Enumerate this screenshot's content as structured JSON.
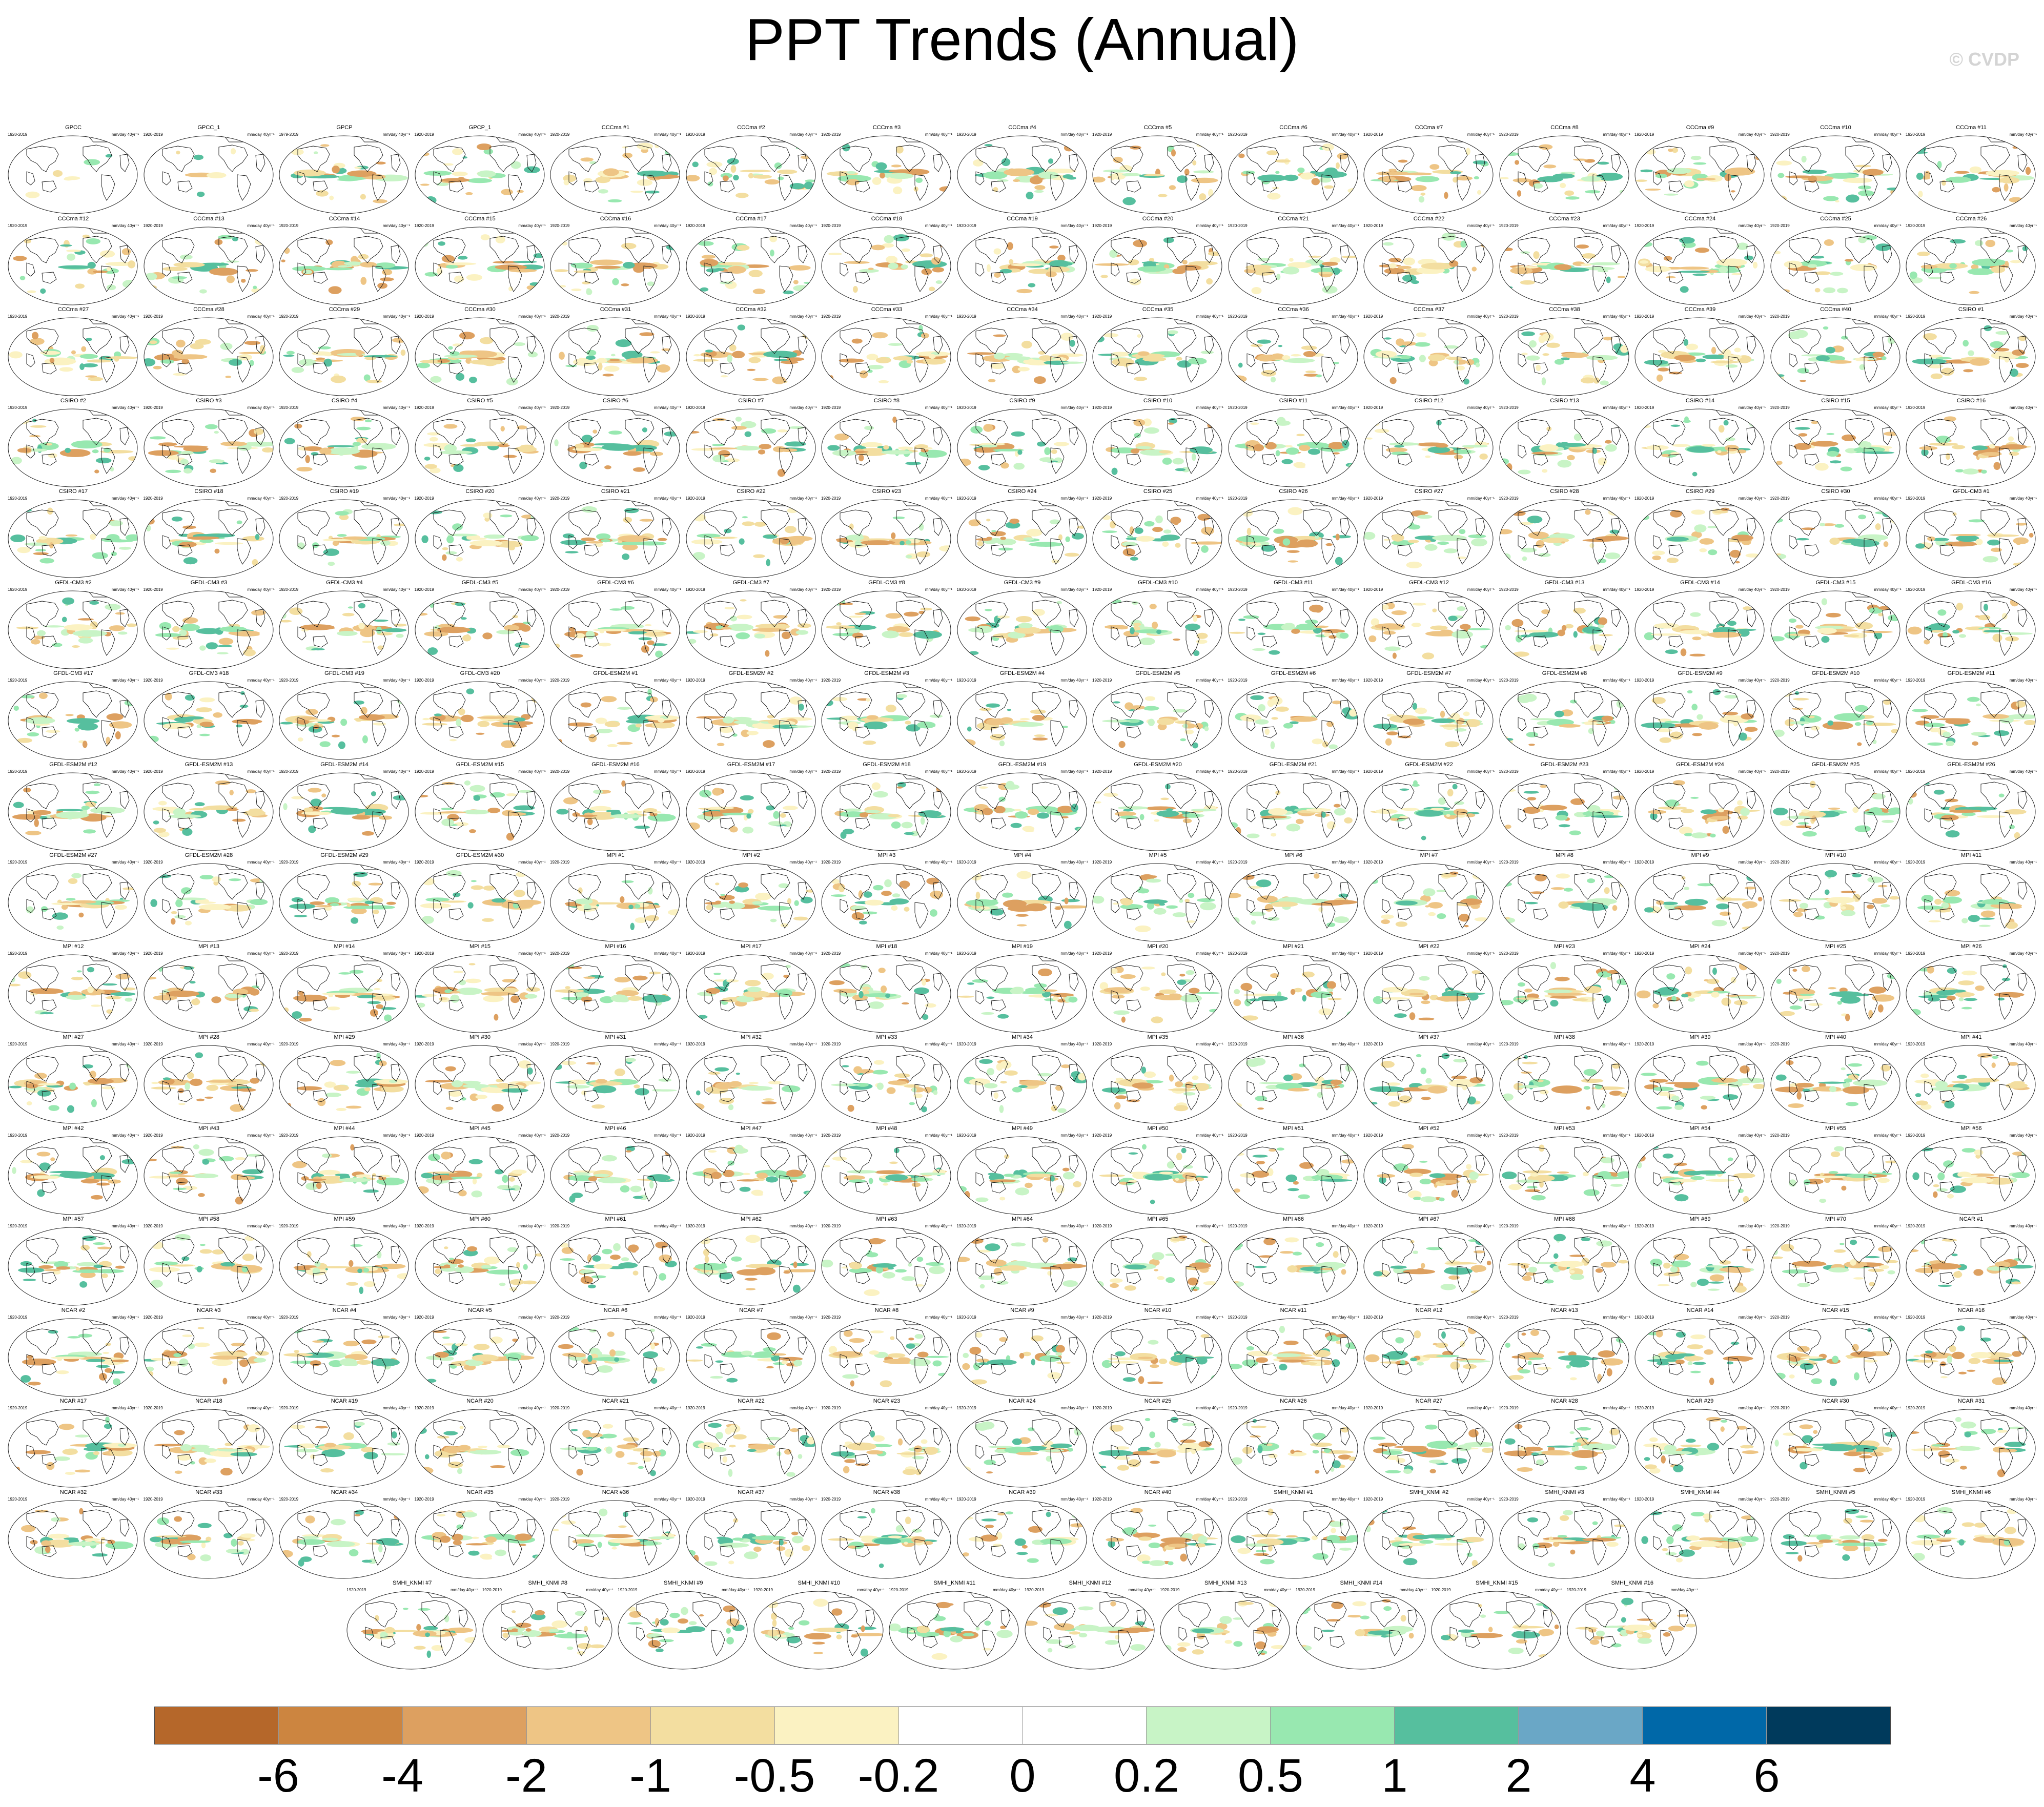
{
  "title": "PPT Trends (Annual)",
  "copyright": "© CVDP",
  "panel_units": "mm/day 40yr⁻¹",
  "observations": [
    {
      "name": "GPCC",
      "years": "1920-2019"
    },
    {
      "name": "GPCC_1",
      "years": "1920-2019"
    },
    {
      "name": "GPCP",
      "years": "1979-2019"
    },
    {
      "name": "GPCP_1",
      "years": "1920-2019"
    }
  ],
  "ensembles": [
    {
      "model": "CCCma",
      "members": 40,
      "years": "1920-2019"
    },
    {
      "model": "CSIRO",
      "members": 30,
      "years": "1920-2019"
    },
    {
      "model": "GFDL-CM3",
      "members": 20,
      "years": "1920-2019"
    },
    {
      "model": "GFDL-ESM2M",
      "members": 30,
      "years": "1920-2019"
    },
    {
      "model": "MPI",
      "members": 70,
      "years": "1920-2019"
    },
    {
      "model": "NCAR",
      "members": 40,
      "years": "1920-2019"
    },
    {
      "model": "SMHI_KNMI",
      "members": 16,
      "years": "1920-2019"
    }
  ],
  "chart_data": {
    "type": "heatmap",
    "title": "PPT Trends (Annual)",
    "variable": "precipitation trend",
    "units": "mm/day 40yr⁻¹",
    "projection": "Robinson (Pacific-centered global map)",
    "layout": {
      "columns": 15,
      "full_rows": 16,
      "last_row_panels": 10
    },
    "panel_count": 250,
    "colorbar": {
      "levels": [
        -6,
        -4,
        -2,
        -1,
        -0.5,
        -0.2,
        0,
        0.2,
        0.5,
        1,
        2,
        4,
        6
      ],
      "labels": [
        "-6",
        "-4",
        "-2",
        "-1",
        "-0.5",
        "-0.2",
        "0",
        "0.2",
        "0.5",
        "1",
        "2",
        "4",
        "6"
      ],
      "colors": [
        "#b5672a",
        "#cc8540",
        "#dda060",
        "#eec585",
        "#f3dea0",
        "#fbf2c2",
        "#ffffff",
        "#ffffff",
        "#c8f4c6",
        "#98e8b0",
        "#56bf9e",
        "#6aa7c6",
        "#0068a8",
        "#003a5c"
      ]
    },
    "colors": {
      "land_outline": "#111111",
      "map_border": "#222222"
    }
  }
}
